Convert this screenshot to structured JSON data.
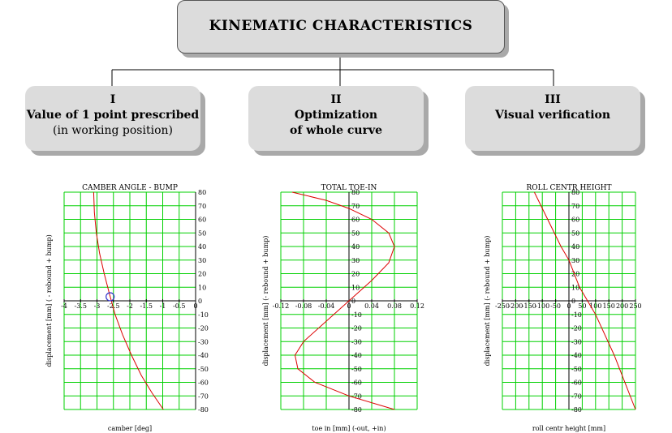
{
  "header": {
    "title": "KINEMATIC CHARACTERISTICS"
  },
  "steps": [
    {
      "numeral": "I",
      "line1": "Value of 1 point prescribed",
      "line2": "(in working position)"
    },
    {
      "numeral": "II",
      "line1": "Optimization",
      "line2": "of whole curve"
    },
    {
      "numeral": "III",
      "line1": "Visual verification",
      "line2": ""
    }
  ],
  "colors": {
    "grid": "#00d000",
    "curve": "#dd0000",
    "marker": "#3333cc",
    "box": "#dcdcdc",
    "shadow": "#a9a9a9"
  },
  "chart_data": [
    {
      "type": "line",
      "title": "CAMBER ANGLE - BUMP",
      "xlabel": "camber [deg]",
      "ylabel": "displacement [mm] ( - rebound + bump)",
      "xlim": [
        -4,
        0
      ],
      "ylim": [
        -80,
        80
      ],
      "xticks": [
        "-4",
        "-3.5",
        "-3",
        "-2.5",
        "-2",
        "-1.5",
        "-1",
        "-0.5",
        "0"
      ],
      "xtick_values": [
        -4,
        -3.5,
        -3,
        -2.5,
        -2,
        -1.5,
        -1,
        -0.5,
        0
      ],
      "yticks": [
        "80",
        "70",
        "60",
        "50",
        "40",
        "30",
        "20",
        "10",
        "0",
        "-10",
        "-20",
        "-30",
        "-40",
        "-50",
        "-60",
        "-70",
        "-80"
      ],
      "ytick_values": [
        80,
        70,
        60,
        50,
        40,
        30,
        20,
        10,
        0,
        -10,
        -20,
        -30,
        -40,
        -50,
        -60,
        -70,
        -80
      ],
      "grid": true,
      "x": [
        -3.1,
        -3.08,
        -3.02,
        -2.92,
        -2.78,
        -2.62,
        -2.45,
        -2.22,
        -1.95,
        -1.65,
        -1.32,
        -0.98
      ],
      "y": [
        80,
        65,
        50,
        35,
        20,
        5,
        -10,
        -25,
        -40,
        -55,
        -68,
        -80
      ],
      "marker": {
        "x": -2.6,
        "y": 3
      }
    },
    {
      "type": "line",
      "title": "TOTAL TOE-IN",
      "xlabel": "toe in [mm] (-out, +in)",
      "ylabel": "displacement [mm] (- rebound + bump)",
      "xlim": [
        -0.12,
        0.12
      ],
      "ylim": [
        -80,
        80
      ],
      "xticks": [
        "-0.12",
        "-0.08",
        "-0.04",
        "0",
        "0.04",
        "0.08",
        "0.12"
      ],
      "xtick_values": [
        -0.12,
        -0.08,
        -0.04,
        0,
        0.04,
        0.08,
        0.12
      ],
      "yticks": [
        "80",
        "70",
        "60",
        "50",
        "40",
        "30",
        "20",
        "10",
        "0",
        "-10",
        "-20",
        "-30",
        "-40",
        "-50",
        "-60",
        "-70",
        "-80"
      ],
      "ytick_values": [
        80,
        70,
        60,
        50,
        40,
        30,
        20,
        10,
        0,
        -10,
        -20,
        -30,
        -40,
        -50,
        -60,
        -70,
        -80
      ],
      "grid": true,
      "x": [
        -0.1,
        -0.04,
        0.0,
        0.04,
        0.07,
        0.08,
        0.07,
        0.04,
        0.0,
        -0.04,
        -0.08,
        -0.095,
        -0.09,
        -0.06,
        0.0,
        0.08
      ],
      "y": [
        80,
        74,
        68,
        60,
        50,
        40,
        28,
        15,
        0,
        -15,
        -30,
        -40,
        -50,
        -60,
        -70,
        -80
      ]
    },
    {
      "type": "line",
      "title": "ROLL CENTR HEIGHT",
      "xlabel": "roll centr height [mm]",
      "ylabel": "displacement [mm] (- rebound + bump)",
      "xlim": [
        -250,
        250
      ],
      "ylim": [
        -80,
        80
      ],
      "xticks": [
        "-250",
        "-200",
        "-150",
        "-100",
        "-50",
        "0",
        "50",
        "100",
        "150",
        "200",
        "250"
      ],
      "xtick_values": [
        -250,
        -200,
        -150,
        -100,
        -50,
        0,
        50,
        100,
        150,
        200,
        250
      ],
      "yticks": [
        "80",
        "70",
        "60",
        "50",
        "40",
        "30",
        "20",
        "10",
        "0",
        "-10",
        "-20",
        "-30",
        "-40",
        "-50",
        "-60",
        "-70",
        "-80"
      ],
      "ytick_values": [
        80,
        70,
        60,
        50,
        40,
        30,
        20,
        10,
        0,
        -10,
        -20,
        -30,
        -40,
        -50,
        -60,
        -70,
        -80
      ],
      "grid": true,
      "x": [
        -130,
        -80,
        -30,
        0,
        40,
        100,
        170,
        250
      ],
      "y": [
        80,
        60,
        40,
        30,
        10,
        -10,
        -40,
        -80
      ]
    }
  ]
}
